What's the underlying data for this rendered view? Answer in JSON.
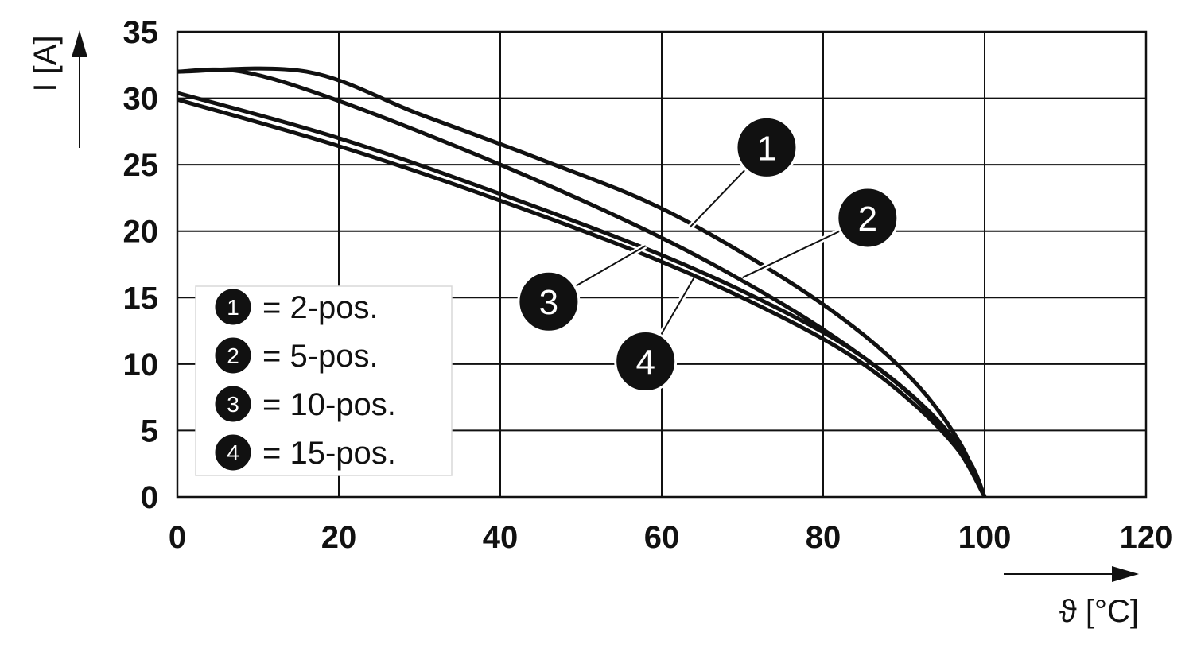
{
  "chart_data": {
    "type": "line",
    "title": "",
    "xlabel": "ϑ [°C]",
    "ylabel": "I [A]",
    "xlim": [
      0,
      120
    ],
    "ylim": [
      0,
      35
    ],
    "xticks": [
      0,
      20,
      40,
      60,
      80,
      100,
      120
    ],
    "yticks": [
      0,
      5,
      10,
      15,
      20,
      25,
      30,
      35
    ],
    "grid": true,
    "legend": {
      "placement": "bottom-left",
      "entries": [
        {
          "marker": "1",
          "text": "= 2-pos."
        },
        {
          "marker": "2",
          "text": "= 5-pos."
        },
        {
          "marker": "3",
          "text": "= 10-pos."
        },
        {
          "marker": "4",
          "text": "= 15-pos."
        }
      ]
    },
    "series": [
      {
        "marker": "1",
        "x": [
          0,
          16,
          30,
          45,
          60,
          75,
          85,
          92,
          97,
          100
        ],
        "y": [
          32,
          32,
          28.8,
          25.4,
          21.7,
          16.5,
          12.2,
          8.2,
          4,
          0
        ]
      },
      {
        "marker": "2",
        "x": [
          0,
          8,
          20,
          40,
          60,
          75,
          85,
          92,
          97,
          100
        ],
        "y": [
          32,
          32,
          29.8,
          25,
          19.5,
          14.5,
          10.5,
          7,
          3.3,
          0
        ]
      },
      {
        "marker": "3",
        "x": [
          0,
          20,
          40,
          60,
          75,
          85,
          93,
          98,
          100
        ],
        "y": [
          30.4,
          27,
          22.8,
          18.2,
          14,
          10.5,
          6.5,
          2.8,
          0
        ]
      },
      {
        "marker": "4",
        "x": [
          0,
          20,
          40,
          60,
          75,
          85,
          93,
          98,
          100
        ],
        "y": [
          29.9,
          26.4,
          22.3,
          17.7,
          13.5,
          10,
          6,
          2.5,
          0
        ]
      }
    ],
    "callouts": [
      {
        "marker": "1",
        "label_at": [
          73,
          26.3
        ],
        "points_to": [
          63.5,
          20.3
        ]
      },
      {
        "marker": "2",
        "label_at": [
          85.5,
          21
        ],
        "points_to": [
          70,
          16.5
        ]
      },
      {
        "marker": "3",
        "label_at": [
          46,
          14.7
        ],
        "points_to": [
          58,
          18.9
        ]
      },
      {
        "marker": "4",
        "label_at": [
          58,
          10.2
        ],
        "points_to": [
          64,
          16.5
        ]
      }
    ]
  }
}
